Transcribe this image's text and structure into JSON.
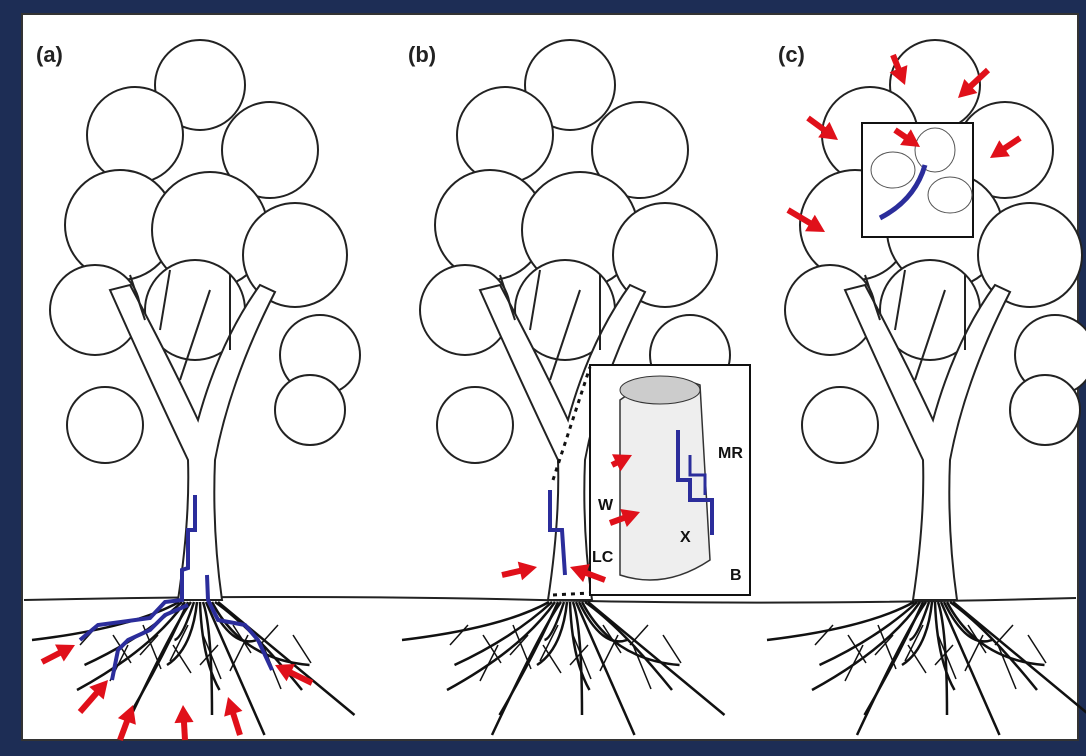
{
  "panels": [
    {
      "label": "(a)"
    },
    {
      "label": "(b)",
      "inset_labels": [
        "W",
        "LC",
        "X",
        "MR",
        "B"
      ]
    },
    {
      "label": "(c)"
    }
  ]
}
